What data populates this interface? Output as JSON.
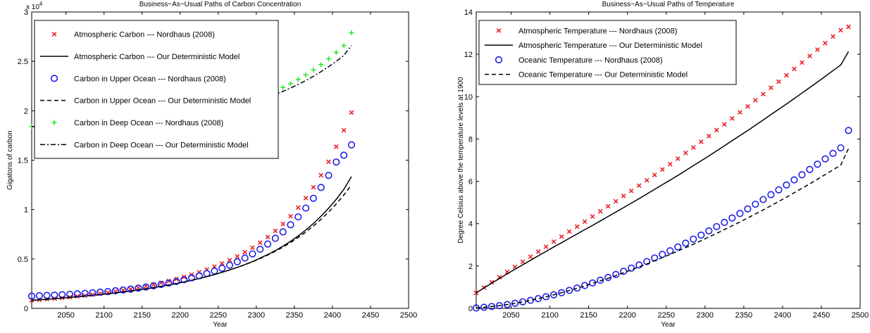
{
  "chart_data": [
    {
      "type": "line",
      "title": "Business−As−Usual Paths of Carbon Concentration",
      "xlabel": "Year",
      "ylabel": "Gigatons of carbon",
      "y_exponent_label": "x 10",
      "y_exponent": "4",
      "xlim": [
        2005,
        2500
      ],
      "ylim": [
        0,
        3
      ],
      "y_multiplier": 10000,
      "xticks": [
        2050,
        2100,
        2150,
        2200,
        2250,
        2300,
        2350,
        2400,
        2450,
        2500
      ],
      "yticks": [
        0,
        0.5,
        1,
        1.5,
        2,
        2.5,
        3
      ],
      "ytick_labels": [
        "0",
        "0.5",
        "1",
        "1.5",
        "2",
        "2.5",
        "3"
      ],
      "grid": false,
      "legend_position": "top-left",
      "series": [
        {
          "name": "Atmospheric Carbon --- Nordhaus (2008)",
          "style": "markers",
          "marker": "x",
          "color": "#e8232a",
          "x0": 2005,
          "dx": 10,
          "values": [
            0.081,
            0.087,
            0.093,
            0.099,
            0.106,
            0.113,
            0.121,
            0.129,
            0.138,
            0.148,
            0.158,
            0.17,
            0.182,
            0.195,
            0.209,
            0.224,
            0.24,
            0.258,
            0.277,
            0.297,
            0.318,
            0.341,
            0.366,
            0.393,
            0.422,
            0.454,
            0.488,
            0.526,
            0.568,
            0.614,
            0.665,
            0.722,
            0.785,
            0.855,
            0.933,
            1.02,
            1.117,
            1.226,
            1.348,
            1.484,
            1.636,
            1.802,
            1.982
          ]
        },
        {
          "name": "Atmospheric Carbon --- Our Deterministic Model",
          "style": "solid",
          "color": "#000000",
          "x0": 2005,
          "dx": 10,
          "values": [
            0.08,
            0.086,
            0.092,
            0.098,
            0.104,
            0.11,
            0.117,
            0.124,
            0.131,
            0.139,
            0.147,
            0.156,
            0.165,
            0.175,
            0.186,
            0.197,
            0.209,
            0.222,
            0.236,
            0.251,
            0.267,
            0.284,
            0.302,
            0.321,
            0.342,
            0.365,
            0.389,
            0.415,
            0.443,
            0.474,
            0.508,
            0.545,
            0.585,
            0.63,
            0.679,
            0.733,
            0.793,
            0.859,
            0.933,
            1.014,
            1.104,
            1.204,
            1.333
          ]
        },
        {
          "name": "Carbon in Upper Ocean --- Nordhaus (2008)",
          "style": "markers",
          "marker": "o",
          "color": "#1f1fe6",
          "x0": 2005,
          "dx": 10,
          "values": [
            0.125,
            0.128,
            0.131,
            0.134,
            0.138,
            0.142,
            0.147,
            0.152,
            0.158,
            0.164,
            0.17,
            0.178,
            0.186,
            0.195,
            0.205,
            0.216,
            0.228,
            0.242,
            0.256,
            0.272,
            0.29,
            0.309,
            0.33,
            0.353,
            0.378,
            0.406,
            0.437,
            0.471,
            0.509,
            0.551,
            0.598,
            0.651,
            0.709,
            0.774,
            0.846,
            0.926,
            1.015,
            1.114,
            1.224,
            1.346,
            1.481,
            1.55,
            1.655
          ]
        },
        {
          "name": "Carbon in Upper Ocean --- Our Deterministic Model",
          "style": "dashed",
          "color": "#000000",
          "x0": 2005,
          "dx": 10,
          "values": [
            0.082,
            0.088,
            0.094,
            0.1,
            0.106,
            0.112,
            0.119,
            0.126,
            0.133,
            0.141,
            0.149,
            0.158,
            0.167,
            0.177,
            0.188,
            0.199,
            0.211,
            0.224,
            0.238,
            0.253,
            0.268,
            0.285,
            0.303,
            0.322,
            0.343,
            0.365,
            0.389,
            0.414,
            0.442,
            0.472,
            0.504,
            0.54,
            0.578,
            0.62,
            0.666,
            0.717,
            0.772,
            0.834,
            0.901,
            0.975,
            1.057,
            1.147,
            1.25
          ]
        },
        {
          "name": "Carbon in Deep Ocean --- Nordhaus (2008)",
          "style": "markers",
          "marker": "+",
          "color": "#2ee82e",
          "x0": 2005,
          "dx": 10,
          "values": [
            1.84,
            1.841,
            1.842,
            1.843,
            1.845,
            1.846,
            1.848,
            1.851,
            1.854,
            1.857,
            1.861,
            1.866,
            1.871,
            1.877,
            1.883,
            1.89,
            1.898,
            1.907,
            1.917,
            1.928,
            1.94,
            1.953,
            1.967,
            1.983,
            2.0,
            2.018,
            2.038,
            2.06,
            2.083,
            2.109,
            2.137,
            2.167,
            2.2,
            2.236,
            2.275,
            2.317,
            2.363,
            2.413,
            2.467,
            2.526,
            2.59,
            2.66,
            2.79
          ]
        },
        {
          "name": "Carbon in Deep Ocean --- Our Deterministic Model",
          "style": "dashdot",
          "color": "#000000",
          "x0": 2005,
          "dx": 10,
          "values": [
            1.84,
            1.841,
            1.842,
            1.843,
            1.844,
            1.846,
            1.848,
            1.85,
            1.853,
            1.856,
            1.86,
            1.864,
            1.869,
            1.874,
            1.88,
            1.887,
            1.894,
            1.902,
            1.911,
            1.921,
            1.932,
            1.944,
            1.957,
            1.971,
            1.986,
            2.003,
            2.021,
            2.04,
            2.061,
            2.084,
            2.109,
            2.136,
            2.165,
            2.196,
            2.23,
            2.267,
            2.306,
            2.349,
            2.396,
            2.446,
            2.5,
            2.56,
            2.66
          ]
        }
      ]
    },
    {
      "type": "line",
      "title": "Business−As−Usual Paths of Temperature",
      "xlabel": "Year",
      "ylabel": "Degree Celsius above the temperature levels at 1900",
      "xlim": [
        2005,
        2500
      ],
      "ylim": [
        0,
        14
      ],
      "xticks": [
        2050,
        2100,
        2150,
        2200,
        2250,
        2300,
        2350,
        2400,
        2450,
        2500
      ],
      "yticks": [
        0,
        2,
        4,
        6,
        8,
        10,
        12,
        14
      ],
      "ytick_labels": [
        "0",
        "2",
        "4",
        "6",
        "8",
        "10",
        "12",
        "14"
      ],
      "grid": false,
      "legend_position": "top-left",
      "series": [
        {
          "name": "Atmospheric Temperature --- Nordhaus (2008)",
          "style": "markers",
          "marker": "x",
          "color": "#e8232a",
          "x0": 2005,
          "dx": 10,
          "values": [
            0.73,
            0.98,
            1.23,
            1.47,
            1.72,
            1.96,
            2.2,
            2.44,
            2.68,
            2.91,
            3.15,
            3.39,
            3.63,
            3.86,
            4.1,
            4.34,
            4.58,
            4.82,
            5.06,
            5.31,
            5.55,
            5.8,
            6.05,
            6.3,
            6.56,
            6.81,
            7.07,
            7.34,
            7.6,
            7.87,
            8.14,
            8.42,
            8.69,
            8.97,
            9.26,
            9.54,
            9.83,
            10.12,
            10.42,
            10.71,
            11.01,
            11.31,
            11.61,
            11.92,
            12.22,
            12.53,
            12.84,
            13.14,
            13.3
          ]
        },
        {
          "name": "Atmospheric Temperature --- Our Deterministic Model",
          "style": "solid",
          "color": "#000000",
          "x0": 2005,
          "dx": 10,
          "values": [
            0.73,
            0.96,
            1.19,
            1.41,
            1.63,
            1.85,
            2.06,
            2.27,
            2.48,
            2.69,
            2.9,
            3.1,
            3.31,
            3.51,
            3.72,
            3.92,
            4.13,
            4.34,
            4.55,
            4.76,
            4.97,
            5.18,
            5.4,
            5.62,
            5.84,
            6.06,
            6.28,
            6.51,
            6.74,
            6.97,
            7.2,
            7.44,
            7.68,
            7.92,
            8.16,
            8.4,
            8.65,
            8.9,
            9.15,
            9.4,
            9.65,
            9.91,
            10.17,
            10.43,
            10.69,
            10.96,
            11.23,
            11.5,
            12.13
          ]
        },
        {
          "name": "Oceanic Temperature --- Nordhaus (2008)",
          "style": "markers",
          "marker": "o",
          "color": "#1f1fe6",
          "x0": 2005,
          "dx": 10,
          "values": [
            0.02,
            0.05,
            0.09,
            0.13,
            0.18,
            0.24,
            0.31,
            0.38,
            0.46,
            0.55,
            0.64,
            0.74,
            0.85,
            0.96,
            1.08,
            1.2,
            1.33,
            1.46,
            1.6,
            1.75,
            1.9,
            2.05,
            2.21,
            2.38,
            2.55,
            2.72,
            2.9,
            3.08,
            3.27,
            3.46,
            3.66,
            3.86,
            4.06,
            4.27,
            4.48,
            4.7,
            4.92,
            5.14,
            5.37,
            5.6,
            5.83,
            6.07,
            6.31,
            6.56,
            6.81,
            7.06,
            7.32,
            7.58,
            8.4
          ]
        },
        {
          "name": "Oceanic Temperature --- Our Deterministic Model",
          "style": "dashed",
          "color": "#000000",
          "x0": 2005,
          "dx": 10,
          "values": [
            0.02,
            0.05,
            0.09,
            0.13,
            0.18,
            0.24,
            0.31,
            0.38,
            0.46,
            0.55,
            0.64,
            0.74,
            0.84,
            0.95,
            1.06,
            1.18,
            1.3,
            1.42,
            1.55,
            1.68,
            1.82,
            1.96,
            2.1,
            2.25,
            2.4,
            2.55,
            2.71,
            2.87,
            3.03,
            3.2,
            3.37,
            3.54,
            3.72,
            3.9,
            4.08,
            4.27,
            4.46,
            4.65,
            4.85,
            5.05,
            5.25,
            5.46,
            5.67,
            5.88,
            6.1,
            6.32,
            6.54,
            6.77,
            7.55
          ]
        }
      ]
    }
  ]
}
